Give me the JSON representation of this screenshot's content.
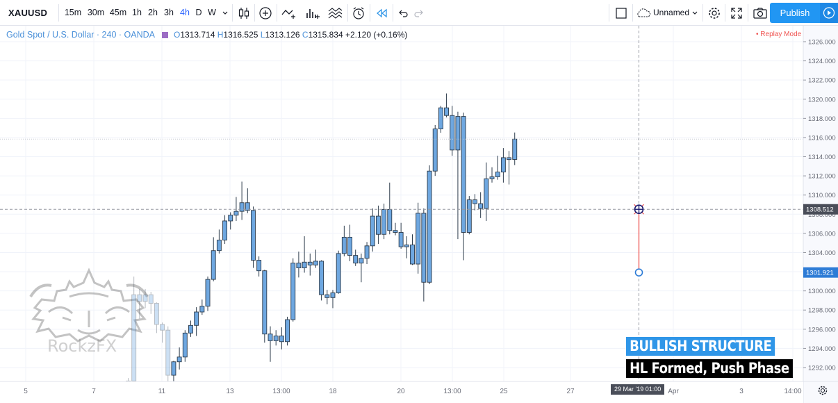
{
  "toolbar": {
    "symbol": "XAUUSD",
    "timeframes": [
      "15m",
      "30m",
      "45m",
      "1h",
      "2h",
      "3h",
      "4h",
      "D",
      "W"
    ],
    "active_timeframe": "4h",
    "layout_name": "Unnamed",
    "publish_label": "Publish"
  },
  "legend": {
    "title": "Gold Spot / U.S. Dollar · 240 · OANDA",
    "o_label": "O",
    "o": "1313.714",
    "h_label": "H",
    "h": "1316.525",
    "l_label": "L",
    "l": "1313.126",
    "c_label": "C",
    "c": "1315.834",
    "change": "+2.120 (+0.16%)"
  },
  "replay_mode": "• Replay Mode",
  "watermark": "RockzFX",
  "badges": {
    "bullish": "BULLISH STRUCTURE",
    "hl": "HL Formed, Push Phase"
  },
  "crosshair_date": "29 Mar '19   01:00",
  "colors": {
    "candle_fill": "#6ea7e0",
    "candle_border": "#2b3a4a",
    "line_red": "#ef5350",
    "marker_blue": "#2e7cd6",
    "axis_bg": "#f8f9fd"
  },
  "chart_data": {
    "type": "candlestick",
    "symbol": "XAUUSD",
    "timeframe": "4h",
    "price_axis": {
      "ticks": [
        1292.0,
        1294.0,
        1296.0,
        1298.0,
        1300.0,
        1302.0,
        1304.0,
        1306.0,
        1308.0,
        1310.0,
        1312.0,
        1314.0,
        1316.0,
        1318.0,
        1320.0,
        1322.0,
        1324.0,
        1326.0
      ],
      "range": [
        1290.6,
        1327.0
      ]
    },
    "time_axis": {
      "labels": [
        "5",
        "7",
        "11",
        "13",
        "13:00",
        "18",
        "20",
        "13:00",
        "25",
        "27",
        "Apr",
        "3",
        "14:00"
      ]
    },
    "current_price": "1308.512",
    "current_price_value": 1308.512,
    "marker_price": "1301.921",
    "marker_price_value": 1301.921,
    "last_close_line": 1315.834,
    "candles": [
      {
        "o": 1290.4,
        "h": 1290.9,
        "l": 1289.8,
        "c": 1290.6
      },
      {
        "o": 1290.6,
        "h": 1301.5,
        "l": 1290.1,
        "c": 1299.6
      },
      {
        "o": 1299.6,
        "h": 1300.2,
        "l": 1297.1,
        "c": 1298.9
      },
      {
        "o": 1298.9,
        "h": 1300.2,
        "l": 1298.2,
        "c": 1299.6
      },
      {
        "o": 1299.6,
        "h": 1299.9,
        "l": 1297.6,
        "c": 1298.7
      },
      {
        "o": 1298.7,
        "h": 1298.8,
        "l": 1295.6,
        "c": 1296.5
      },
      {
        "o": 1296.5,
        "h": 1296.7,
        "l": 1294.6,
        "c": 1295.9
      },
      {
        "o": 1295.9,
        "h": 1296.3,
        "l": 1290.4,
        "c": 1291.2
      },
      {
        "o": 1291.2,
        "h": 1292.7,
        "l": 1289.1,
        "c": 1292.6
      },
      {
        "o": 1292.6,
        "h": 1294.1,
        "l": 1291.8,
        "c": 1293.1
      },
      {
        "o": 1293.1,
        "h": 1295.9,
        "l": 1292.6,
        "c": 1295.6
      },
      {
        "o": 1295.6,
        "h": 1296.9,
        "l": 1295.2,
        "c": 1296.4
      },
      {
        "o": 1296.4,
        "h": 1298.3,
        "l": 1295.3,
        "c": 1297.8
      },
      {
        "o": 1297.8,
        "h": 1299.1,
        "l": 1297.5,
        "c": 1298.4
      },
      {
        "o": 1298.4,
        "h": 1301.5,
        "l": 1297.9,
        "c": 1301.2
      },
      {
        "o": 1301.2,
        "h": 1305.6,
        "l": 1301.0,
        "c": 1304.2
      },
      {
        "o": 1304.2,
        "h": 1306.4,
        "l": 1303.9,
        "c": 1305.3
      },
      {
        "o": 1305.3,
        "h": 1307.9,
        "l": 1304.9,
        "c": 1307.3
      },
      {
        "o": 1307.3,
        "h": 1308.2,
        "l": 1306.4,
        "c": 1307.9
      },
      {
        "o": 1307.9,
        "h": 1309.8,
        "l": 1307.3,
        "c": 1308.3
      },
      {
        "o": 1308.3,
        "h": 1311.4,
        "l": 1307.4,
        "c": 1309.2
      },
      {
        "o": 1309.2,
        "h": 1310.7,
        "l": 1308.1,
        "c": 1308.4
      },
      {
        "o": 1308.4,
        "h": 1308.8,
        "l": 1302.4,
        "c": 1303.2
      },
      {
        "o": 1303.2,
        "h": 1303.6,
        "l": 1301.5,
        "c": 1302.1
      },
      {
        "o": 1302.1,
        "h": 1302.2,
        "l": 1294.6,
        "c": 1295.5
      },
      {
        "o": 1295.5,
        "h": 1296.3,
        "l": 1292.6,
        "c": 1294.8
      },
      {
        "o": 1294.8,
        "h": 1295.9,
        "l": 1294.3,
        "c": 1295.3
      },
      {
        "o": 1295.3,
        "h": 1296.2,
        "l": 1293.9,
        "c": 1294.7
      },
      {
        "o": 1294.7,
        "h": 1297.3,
        "l": 1294.3,
        "c": 1297.0
      },
      {
        "o": 1297.0,
        "h": 1303.4,
        "l": 1296.8,
        "c": 1302.9
      },
      {
        "o": 1302.9,
        "h": 1304.1,
        "l": 1301.4,
        "c": 1302.4
      },
      {
        "o": 1302.4,
        "h": 1305.7,
        "l": 1301.9,
        "c": 1303.0
      },
      {
        "o": 1303.0,
        "h": 1303.9,
        "l": 1301.6,
        "c": 1302.7
      },
      {
        "o": 1302.7,
        "h": 1304.3,
        "l": 1302.4,
        "c": 1303.1
      },
      {
        "o": 1303.1,
        "h": 1303.2,
        "l": 1299.0,
        "c": 1299.6
      },
      {
        "o": 1299.6,
        "h": 1300.1,
        "l": 1298.6,
        "c": 1299.3
      },
      {
        "o": 1299.3,
        "h": 1300.1,
        "l": 1298.2,
        "c": 1299.8
      },
      {
        "o": 1299.8,
        "h": 1304.2,
        "l": 1299.7,
        "c": 1303.9
      },
      {
        "o": 1303.9,
        "h": 1306.8,
        "l": 1303.6,
        "c": 1305.6
      },
      {
        "o": 1305.6,
        "h": 1306.9,
        "l": 1303.1,
        "c": 1303.7
      },
      {
        "o": 1303.7,
        "h": 1304.3,
        "l": 1302.6,
        "c": 1302.9
      },
      {
        "o": 1302.9,
        "h": 1303.9,
        "l": 1300.9,
        "c": 1303.4
      },
      {
        "o": 1303.4,
        "h": 1305.1,
        "l": 1302.8,
        "c": 1304.7
      },
      {
        "o": 1304.7,
        "h": 1308.6,
        "l": 1304.1,
        "c": 1307.8
      },
      {
        "o": 1307.8,
        "h": 1308.9,
        "l": 1304.9,
        "c": 1305.9
      },
      {
        "o": 1305.9,
        "h": 1309.1,
        "l": 1305.4,
        "c": 1308.5
      },
      {
        "o": 1308.5,
        "h": 1311.3,
        "l": 1305.9,
        "c": 1306.3
      },
      {
        "o": 1306.3,
        "h": 1307.1,
        "l": 1305.8,
        "c": 1306.1
      },
      {
        "o": 1306.1,
        "h": 1307.1,
        "l": 1304.4,
        "c": 1304.6
      },
      {
        "o": 1304.6,
        "h": 1305.7,
        "l": 1303.4,
        "c": 1304.8
      },
      {
        "o": 1304.8,
        "h": 1305.9,
        "l": 1302.7,
        "c": 1302.8
      },
      {
        "o": 1302.8,
        "h": 1309.2,
        "l": 1301.8,
        "c": 1308.1
      },
      {
        "o": 1308.1,
        "h": 1308.6,
        "l": 1298.9,
        "c": 1300.9
      },
      {
        "o": 1300.9,
        "h": 1313.1,
        "l": 1300.7,
        "c": 1312.5
      },
      {
        "o": 1312.5,
        "h": 1317.3,
        "l": 1312.0,
        "c": 1316.9
      },
      {
        "o": 1316.9,
        "h": 1319.3,
        "l": 1316.5,
        "c": 1319.1
      },
      {
        "o": 1319.1,
        "h": 1320.6,
        "l": 1318.1,
        "c": 1318.3
      },
      {
        "o": 1318.3,
        "h": 1319.3,
        "l": 1314.1,
        "c": 1314.7
      },
      {
        "o": 1314.7,
        "h": 1318.7,
        "l": 1305.4,
        "c": 1318.2
      },
      {
        "o": 1318.2,
        "h": 1318.6,
        "l": 1303.2,
        "c": 1306.1
      },
      {
        "o": 1306.1,
        "h": 1309.9,
        "l": 1305.9,
        "c": 1309.5
      },
      {
        "o": 1309.5,
        "h": 1310.1,
        "l": 1308.4,
        "c": 1309.1
      },
      {
        "o": 1309.1,
        "h": 1310.3,
        "l": 1307.6,
        "c": 1308.6
      },
      {
        "o": 1308.6,
        "h": 1313.4,
        "l": 1307.3,
        "c": 1311.7
      },
      {
        "o": 1311.7,
        "h": 1312.9,
        "l": 1311.3,
        "c": 1311.9
      },
      {
        "o": 1311.9,
        "h": 1314.1,
        "l": 1311.6,
        "c": 1312.4
      },
      {
        "o": 1312.4,
        "h": 1314.9,
        "l": 1311.3,
        "c": 1313.9
      },
      {
        "o": 1313.9,
        "h": 1314.6,
        "l": 1311.1,
        "c": 1313.7
      },
      {
        "o": 1313.714,
        "h": 1316.525,
        "l": 1313.126,
        "c": 1315.834
      }
    ],
    "annotation_line": {
      "from_price": 1308.512,
      "to_price": 1301.921,
      "bar_index": 104
    }
  }
}
